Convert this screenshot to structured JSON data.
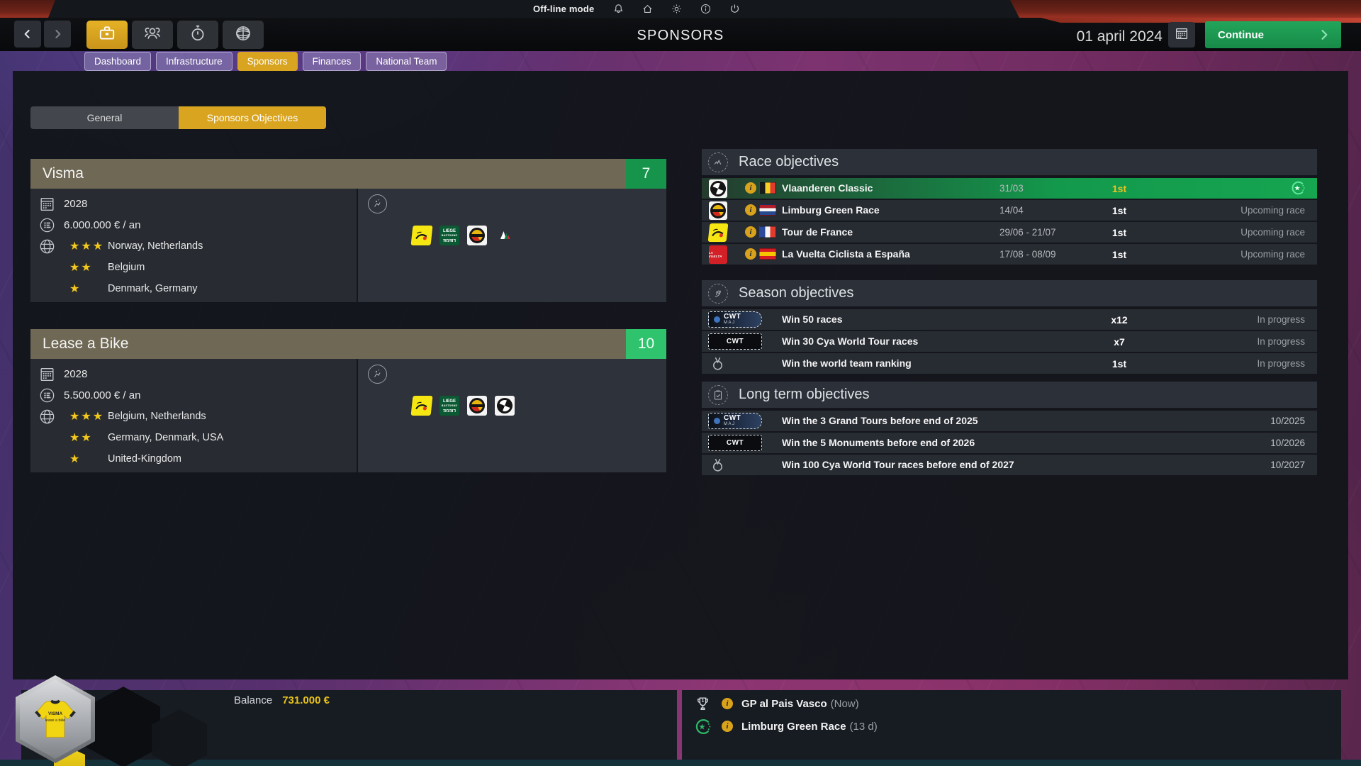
{
  "system_bar": {
    "mode_label": "Off-line mode"
  },
  "header": {
    "title": "SPONSORS",
    "date_label": "01 april 2024",
    "continue_label": "Continue"
  },
  "nav_tabs": [
    {
      "label": "Dashboard",
      "active": false
    },
    {
      "label": "Infrastructure",
      "active": false
    },
    {
      "label": "Sponsors",
      "active": true
    },
    {
      "label": "Finances",
      "active": false
    },
    {
      "label": "National Team",
      "active": false
    }
  ],
  "subtabs": [
    {
      "label": "General",
      "active": false
    },
    {
      "label": "Sponsors Objectives",
      "active": true
    }
  ],
  "sponsor_cards": [
    {
      "name": "Visma",
      "score": "7",
      "score_color": "#17944c",
      "year": "2028",
      "amount": "6.000.000 € / an",
      "regions": [
        {
          "stars": 3,
          "label": "Norway, Netherlands"
        },
        {
          "stars": 2,
          "label": "Belgium"
        },
        {
          "stars": 1,
          "label": "Denmark, Germany"
        }
      ],
      "race_logos": [
        "tour-de-france",
        "liege-bastogne-liege",
        "limburg-gold-race",
        "giro-italia"
      ]
    },
    {
      "name": "Lease a Bike",
      "score": "10",
      "score_color": "#2fc36d",
      "year": "2028",
      "amount": "5.500.000 € / an",
      "regions": [
        {
          "stars": 3,
          "label": "Belgium, Netherlands"
        },
        {
          "stars": 2,
          "label": "Germany, Denmark, USA"
        },
        {
          "stars": 1,
          "label": "United-Kingdom"
        }
      ],
      "race_logos": [
        "tour-de-france",
        "liege-bastogne-liege",
        "limburg-gold-race",
        "vlaanderen-classic"
      ]
    }
  ],
  "race_objectives": {
    "title": "Race objectives",
    "rows": [
      {
        "logo": "vlaanderen-classic",
        "flag": "be",
        "race": "Vlaanderen Classic",
        "date": "31/03",
        "target": "1st",
        "status": "",
        "completed": true
      },
      {
        "logo": "limburg-green-race",
        "flag": "nl",
        "race": "Limburg Green Race",
        "date": "14/04",
        "target": "1st",
        "status": "Upcoming race",
        "completed": false
      },
      {
        "logo": "tour-de-france",
        "flag": "fr",
        "race": "Tour de France",
        "date": "29/06 - 21/07",
        "target": "1st",
        "status": "Upcoming race",
        "completed": false
      },
      {
        "logo": "la-vuelta",
        "flag": "es",
        "race": "La Vuelta Ciclista a España",
        "date": "17/08 - 08/09",
        "target": "1st",
        "status": "Upcoming race",
        "completed": false
      }
    ]
  },
  "season_objectives": {
    "title": "Season objectives",
    "rows": [
      {
        "badge": "cwt-maj",
        "label": "Win 50 races",
        "target": "x12",
        "status": "In progress"
      },
      {
        "badge": "cwt",
        "label": "Win 30 Cya World Tour races",
        "target": "x7",
        "status": "In progress"
      },
      {
        "badge": "medal",
        "label": "Win the world team ranking",
        "target": "1st",
        "status": "In progress"
      }
    ]
  },
  "long_term_objectives": {
    "title": "Long term objectives",
    "rows": [
      {
        "badge": "cwt-maj",
        "label": "Win the 3 Grand Tours before end of 2025",
        "deadline": "10/2025"
      },
      {
        "badge": "cwt",
        "label": "Win the 5 Monuments before end of 2026",
        "deadline": "10/2026"
      },
      {
        "badge": "medal",
        "label": "Win 100 Cya World Tour races before end of 2027",
        "deadline": "10/2027"
      }
    ]
  },
  "footer": {
    "balance_label": "Balance",
    "balance_value": "731.000 €",
    "events": [
      {
        "icon": "trophy",
        "name": "GP al Pais Vasco",
        "time": "(Now)"
      },
      {
        "icon": "crescent-star",
        "name": "Limburg Green Race",
        "time": "(13 d)"
      }
    ]
  },
  "badge_labels": {
    "cwt": "CWT",
    "maj": "MAJ"
  },
  "logo_text": {
    "liege_top": "LIEGE",
    "liege_mid": "BASTOGNE",
    "liege_bottom": "LIEGE",
    "vuelta": "LA VUELTA",
    "jersey_line1": "VISMA",
    "jersey_line2": "lease a bike"
  },
  "colors": {
    "accent_yellow": "#d9a41f",
    "success_green": "#18a351",
    "highlight_target": "#ecc320",
    "balance_value": "#e7c41c"
  }
}
